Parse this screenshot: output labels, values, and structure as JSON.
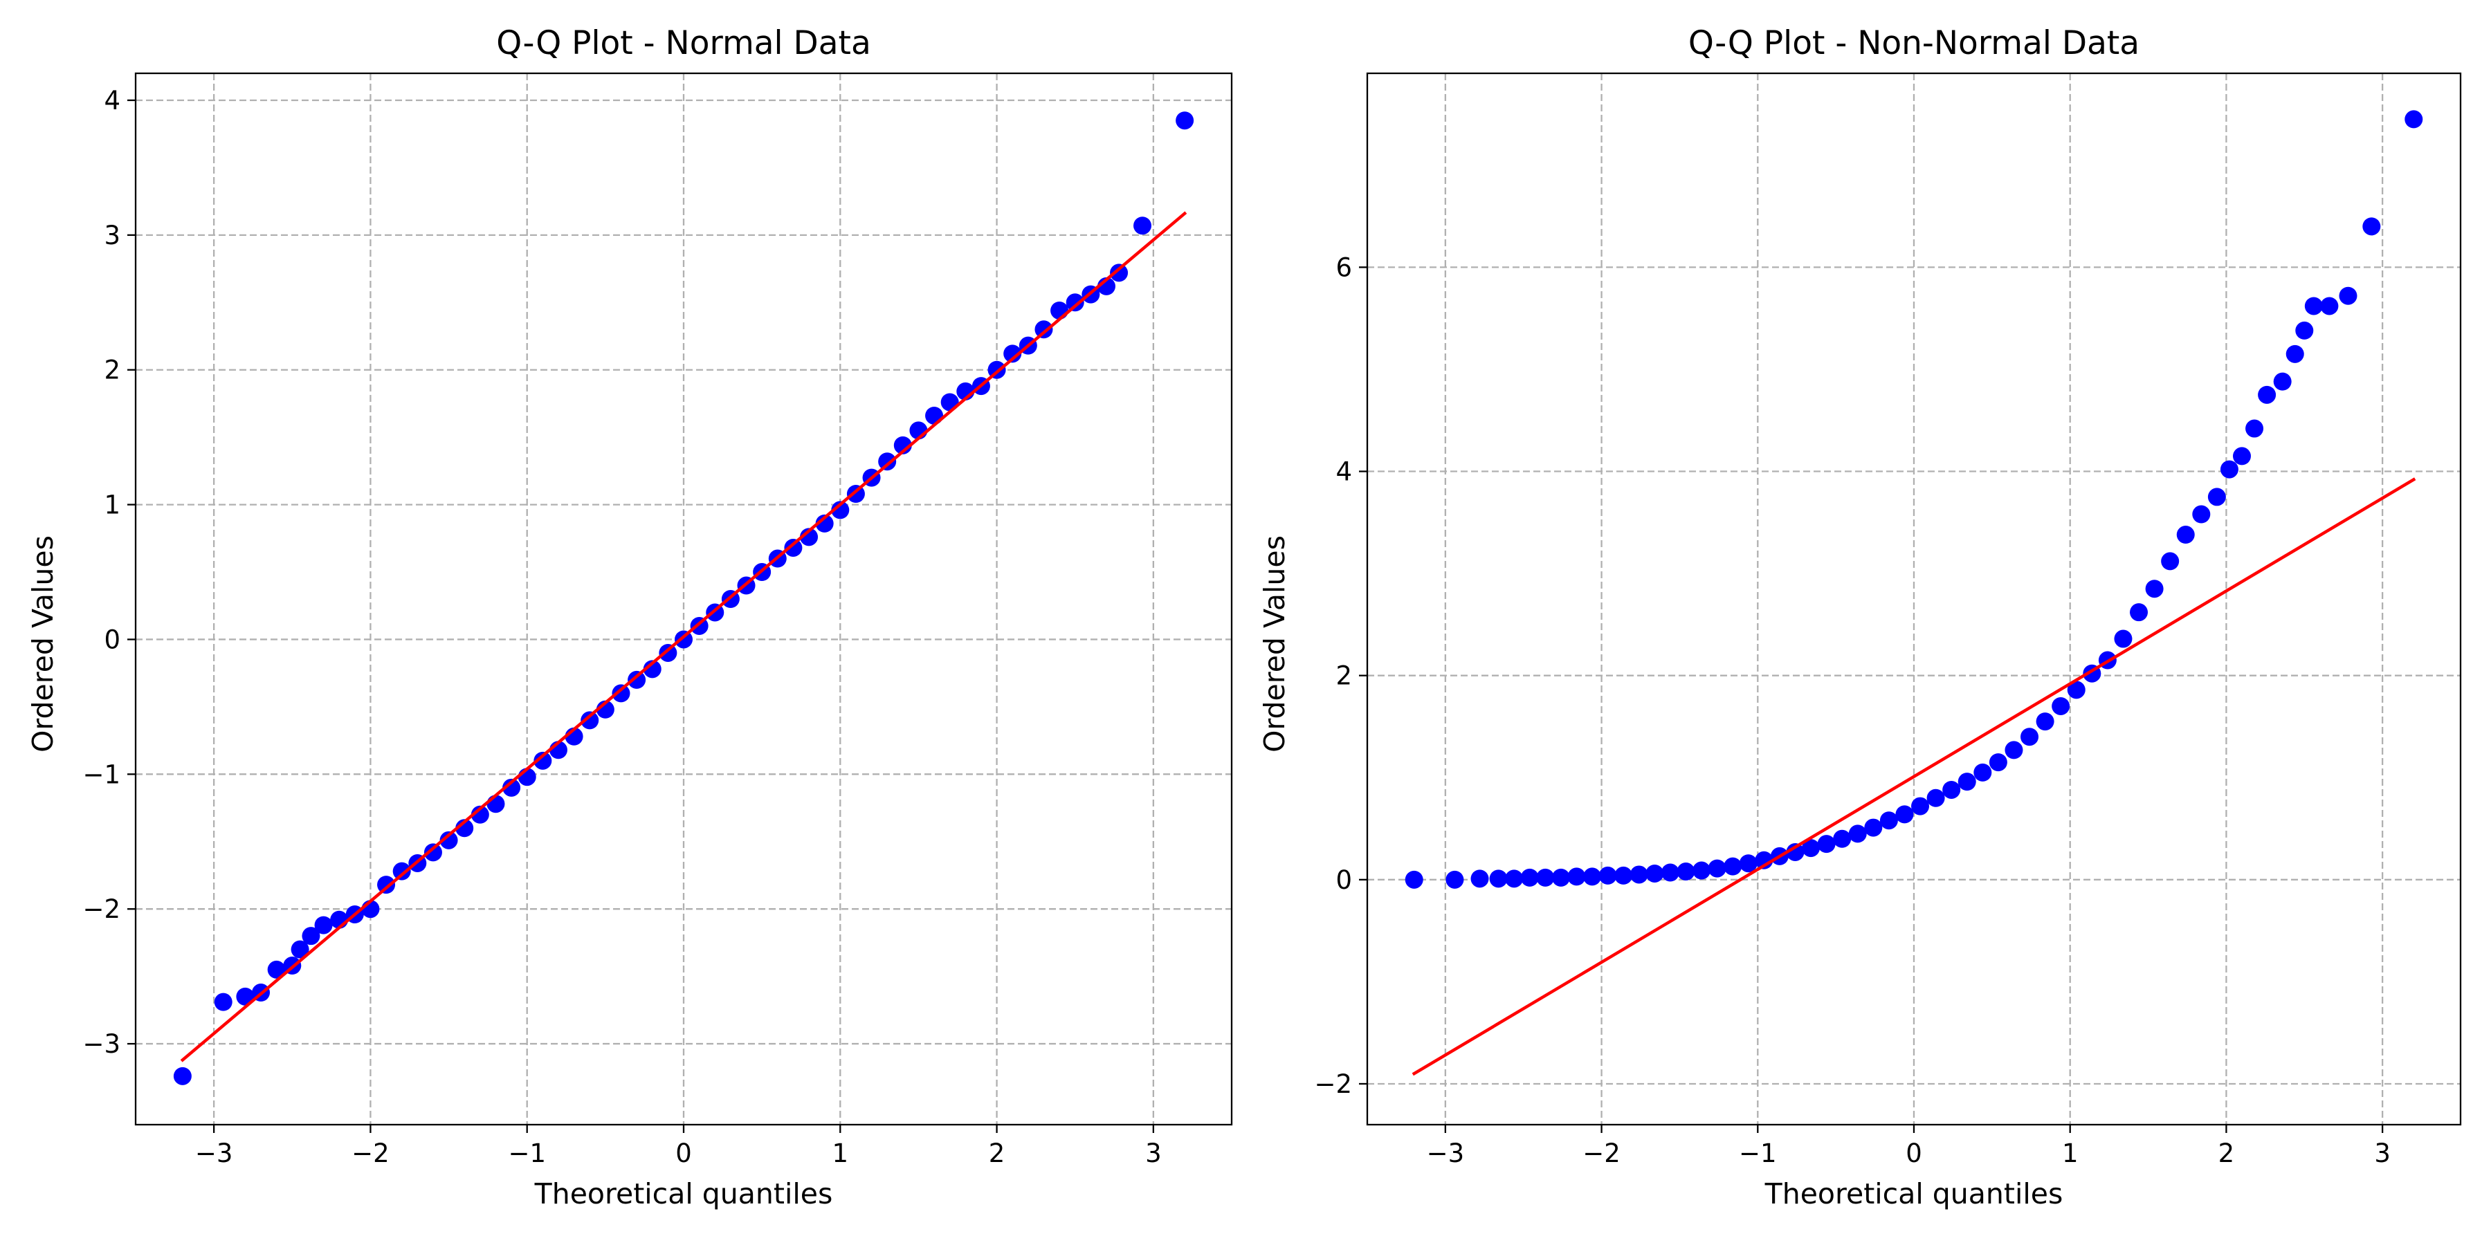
{
  "chart_data": [
    {
      "type": "scatter",
      "title": "Q-Q Plot - Normal Data",
      "xlabel": "Theoretical quantiles",
      "ylabel": "Ordered Values",
      "xlim": [
        -3.5,
        3.5
      ],
      "ylim": [
        -3.6,
        4.2
      ],
      "xticks": [
        -3,
        -2,
        -1,
        0,
        1,
        2,
        3
      ],
      "xtick_labels": [
        "−3",
        "−2",
        "−1",
        "0",
        "1",
        "2",
        "3"
      ],
      "yticks": [
        -3,
        -2,
        -1,
        0,
        1,
        2,
        3,
        4
      ],
      "ytick_labels": [
        "−3",
        "−2",
        "−1",
        "0",
        "1",
        "2",
        "3",
        "4"
      ],
      "grid": true,
      "marker_color": "#0000ff",
      "line_color": "#ff0000",
      "fit_line": {
        "x": [
          -3.2,
          3.2
        ],
        "y": [
          -3.12,
          3.16
        ]
      },
      "points": [
        [
          -3.2,
          -3.24
        ],
        [
          -2.94,
          -2.69
        ],
        [
          -2.8,
          -2.65
        ],
        [
          -2.7,
          -2.62
        ],
        [
          -2.6,
          -2.45
        ],
        [
          -2.5,
          -2.42
        ],
        [
          -2.45,
          -2.3
        ],
        [
          -2.38,
          -2.2
        ],
        [
          -2.3,
          -2.12
        ],
        [
          -2.2,
          -2.08
        ],
        [
          -2.1,
          -2.04
        ],
        [
          -2.0,
          -2.0
        ],
        [
          -1.9,
          -1.82
        ],
        [
          -1.8,
          -1.72
        ],
        [
          -1.7,
          -1.66
        ],
        [
          -1.6,
          -1.58
        ],
        [
          -1.5,
          -1.49
        ],
        [
          -1.4,
          -1.4
        ],
        [
          -1.3,
          -1.3
        ],
        [
          -1.2,
          -1.22
        ],
        [
          -1.1,
          -1.1
        ],
        [
          -1.0,
          -1.02
        ],
        [
          -0.9,
          -0.9
        ],
        [
          -0.8,
          -0.82
        ],
        [
          -0.7,
          -0.72
        ],
        [
          -0.6,
          -0.6
        ],
        [
          -0.5,
          -0.52
        ],
        [
          -0.4,
          -0.4
        ],
        [
          -0.3,
          -0.3
        ],
        [
          -0.2,
          -0.22
        ],
        [
          -0.1,
          -0.1
        ],
        [
          0.0,
          0.0
        ],
        [
          0.1,
          0.1
        ],
        [
          0.2,
          0.2
        ],
        [
          0.3,
          0.3
        ],
        [
          0.4,
          0.4
        ],
        [
          0.5,
          0.5
        ],
        [
          0.6,
          0.6
        ],
        [
          0.7,
          0.68
        ],
        [
          0.8,
          0.76
        ],
        [
          0.9,
          0.86
        ],
        [
          1.0,
          0.96
        ],
        [
          1.1,
          1.08
        ],
        [
          1.2,
          1.2
        ],
        [
          1.3,
          1.32
        ],
        [
          1.4,
          1.44
        ],
        [
          1.5,
          1.55
        ],
        [
          1.6,
          1.66
        ],
        [
          1.7,
          1.76
        ],
        [
          1.8,
          1.84
        ],
        [
          1.9,
          1.88
        ],
        [
          2.0,
          2.0
        ],
        [
          2.1,
          2.12
        ],
        [
          2.2,
          2.18
        ],
        [
          2.3,
          2.3
        ],
        [
          2.4,
          2.44
        ],
        [
          2.5,
          2.5
        ],
        [
          2.6,
          2.56
        ],
        [
          2.7,
          2.62
        ],
        [
          2.78,
          2.72
        ],
        [
          2.93,
          3.07
        ],
        [
          3.2,
          3.85
        ]
      ]
    },
    {
      "type": "scatter",
      "title": "Q-Q Plot - Non-Normal Data",
      "xlabel": "Theoretical quantiles",
      "ylabel": "Ordered Values",
      "xlim": [
        -3.5,
        3.5
      ],
      "ylim": [
        -2.4,
        7.9
      ],
      "xticks": [
        -3,
        -2,
        -1,
        0,
        1,
        2,
        3
      ],
      "xtick_labels": [
        "−3",
        "−2",
        "−1",
        "0",
        "1",
        "2",
        "3"
      ],
      "yticks": [
        -2,
        0,
        2,
        4,
        6
      ],
      "ytick_labels": [
        "−2",
        "0",
        "2",
        "4",
        "6"
      ],
      "grid": true,
      "marker_color": "#0000ff",
      "line_color": "#ff0000",
      "fit_line": {
        "x": [
          -3.2,
          3.2
        ],
        "y": [
          -1.9,
          3.92
        ]
      },
      "points": [
        [
          -3.2,
          0.0
        ],
        [
          -2.94,
          0.0
        ],
        [
          -2.78,
          0.01
        ],
        [
          -2.66,
          0.01
        ],
        [
          -2.56,
          0.01
        ],
        [
          -2.46,
          0.02
        ],
        [
          -2.36,
          0.02
        ],
        [
          -2.26,
          0.02
        ],
        [
          -2.16,
          0.03
        ],
        [
          -2.06,
          0.03
        ],
        [
          -1.96,
          0.04
        ],
        [
          -1.86,
          0.04
        ],
        [
          -1.76,
          0.05
        ],
        [
          -1.66,
          0.06
        ],
        [
          -1.56,
          0.07
        ],
        [
          -1.46,
          0.08
        ],
        [
          -1.36,
          0.09
        ],
        [
          -1.26,
          0.11
        ],
        [
          -1.16,
          0.13
        ],
        [
          -1.06,
          0.16
        ],
        [
          -0.96,
          0.19
        ],
        [
          -0.86,
          0.23
        ],
        [
          -0.76,
          0.27
        ],
        [
          -0.66,
          0.31
        ],
        [
          -0.56,
          0.35
        ],
        [
          -0.46,
          0.4
        ],
        [
          -0.36,
          0.45
        ],
        [
          -0.26,
          0.51
        ],
        [
          -0.16,
          0.58
        ],
        [
          -0.06,
          0.64
        ],
        [
          0.04,
          0.72
        ],
        [
          0.14,
          0.8
        ],
        [
          0.24,
          0.88
        ],
        [
          0.34,
          0.96
        ],
        [
          0.44,
          1.05
        ],
        [
          0.54,
          1.15
        ],
        [
          0.64,
          1.27
        ],
        [
          0.74,
          1.4
        ],
        [
          0.84,
          1.55
        ],
        [
          0.94,
          1.7
        ],
        [
          1.04,
          1.86
        ],
        [
          1.14,
          2.02
        ],
        [
          1.24,
          2.15
        ],
        [
          1.34,
          2.36
        ],
        [
          1.44,
          2.62
        ],
        [
          1.54,
          2.85
        ],
        [
          1.64,
          3.12
        ],
        [
          1.74,
          3.38
        ],
        [
          1.84,
          3.58
        ],
        [
          1.94,
          3.75
        ],
        [
          2.02,
          4.02
        ],
        [
          2.1,
          4.15
        ],
        [
          2.18,
          4.42
        ],
        [
          2.26,
          4.75
        ],
        [
          2.36,
          4.88
        ],
        [
          2.44,
          5.15
        ],
        [
          2.5,
          5.38
        ],
        [
          2.56,
          5.62
        ],
        [
          2.66,
          5.62
        ],
        [
          2.78,
          5.72
        ],
        [
          2.93,
          6.4
        ],
        [
          3.2,
          7.45
        ]
      ]
    }
  ]
}
